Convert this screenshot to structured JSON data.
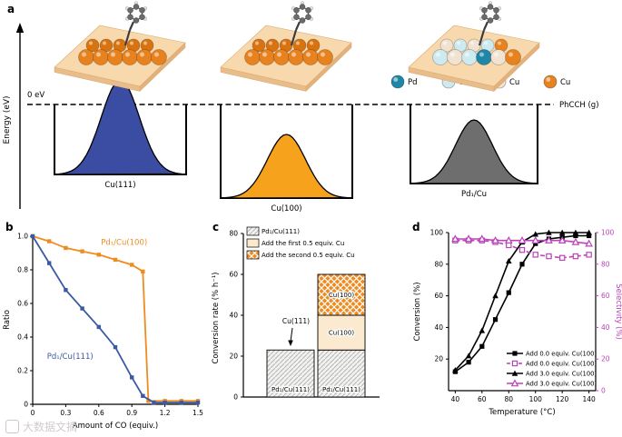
{
  "watermark": {
    "text": "大数据文摘"
  },
  "panel_a": {
    "label": "a",
    "energy_axis_label": "Energy (eV)",
    "zero_label": "0 eV",
    "gas_label": "PhCCH (g)",
    "legend": [
      {
        "label": "Pd",
        "color": "#1f86a8"
      },
      {
        "label": "Cu",
        "color": "#cdeaf0"
      },
      {
        "label": "Cu",
        "color": "#f4e6d4"
      },
      {
        "label": "Cu",
        "color": "#e8821e"
      }
    ],
    "wells": [
      {
        "label": "Cu(111)",
        "peak_color": "#3b4da3"
      },
      {
        "label": "Cu(100)",
        "peak_color": "#f6a21c"
      },
      {
        "label": "Pd₁/Cu",
        "peak_color": "#6e6e6e"
      }
    ],
    "slabs": [
      {
        "atoms_back": [
          "#d9730f",
          "#d9730f",
          "#d9730f",
          "#d9730f",
          "#d9730f"
        ],
        "atoms_front": [
          "#e8821e",
          "#e8821e",
          "#e8821e",
          "#e8821e",
          "#e8821e",
          "#e8821e"
        ]
      },
      {
        "atoms_back": [
          "#d9730f",
          "#d9730f",
          "#d9730f",
          "#d9730f",
          "#d9730f"
        ],
        "atoms_front": [
          "#e8821e",
          "#e8821e",
          "#e8821e",
          "#e8821e",
          "#e8821e",
          "#e8821e"
        ]
      },
      {
        "atoms_back": [
          "#f1e3d2",
          "#cdeaf0",
          "#f1e3d2",
          "#cdeaf0",
          "#e8821e"
        ],
        "atoms_front": [
          "#cdeaf0",
          "#f1e3d2",
          "#cdeaf0",
          "#1f86a8",
          "#f1e3d2",
          "#e8821e"
        ]
      }
    ]
  },
  "chart_data": [
    {
      "panel": "b",
      "type": "line",
      "xlabel": "Amount of CO (equiv.)",
      "ylabel": "Ratio",
      "xlim": [
        0,
        1.5
      ],
      "ylim": [
        0,
        1.0
      ],
      "xticks": [
        0,
        0.3,
        0.6,
        0.9,
        1.2,
        1.5
      ],
      "yticks": [
        0,
        0.2,
        0.4,
        0.6,
        0.8,
        1.0
      ],
      "series": [
        {
          "name": "Pd₁/Cu(100)",
          "color": "#ef8c1e",
          "marker": "square",
          "x": [
            0,
            0.15,
            0.3,
            0.45,
            0.6,
            0.75,
            0.9,
            1.0,
            1.05,
            1.2,
            1.35,
            1.5
          ],
          "y": [
            1.0,
            0.97,
            0.93,
            0.91,
            0.89,
            0.86,
            0.83,
            0.79,
            0.02,
            0.02,
            0.02,
            0.02
          ],
          "label_x": 0.62,
          "label_y": 0.95
        },
        {
          "name": "Pd₁/Cu(111)",
          "color": "#3b5aa5",
          "marker": "square",
          "x": [
            0,
            0.15,
            0.3,
            0.45,
            0.6,
            0.75,
            0.9,
            1.0,
            1.1,
            1.2,
            1.35,
            1.5
          ],
          "y": [
            1.0,
            0.84,
            0.68,
            0.57,
            0.46,
            0.34,
            0.16,
            0.05,
            0.01,
            0.01,
            0.01,
            0.01
          ],
          "label_x": 0.13,
          "label_y": 0.27
        }
      ]
    },
    {
      "panel": "c",
      "type": "bar",
      "ylabel": "Conversion rate (% h⁻¹)",
      "ylim": [
        0,
        80
      ],
      "yticks": [
        0,
        20,
        40,
        60,
        80
      ],
      "legend": [
        {
          "label": "Pd₁/Cu(111)",
          "style": "hatch-gray"
        },
        {
          "label": "Add the first 0.5 equiv. Cu",
          "style": "cream"
        },
        {
          "label": "Add the second 0.5 equiv. Cu",
          "style": "cross-orange"
        }
      ],
      "annotation": {
        "text": "Cu(111)",
        "bar": 0
      },
      "bars": [
        {
          "segments": [
            {
              "label": "Pd₁/Cu(111)",
              "value": 23,
              "style": "hatch-gray"
            }
          ]
        },
        {
          "segments": [
            {
              "label": "Pd₁/Cu(111)",
              "value": 23,
              "style": "hatch-gray"
            },
            {
              "label": "Cu(100)",
              "value": 17,
              "style": "cream"
            },
            {
              "label": "Cu(100)",
              "value": 20,
              "style": "cross-orange"
            }
          ]
        }
      ]
    },
    {
      "panel": "d",
      "type": "line-dual",
      "xlabel": "Temperature (°C)",
      "ylabel_left": "Conversion (%)",
      "ylabel_right": "Selectivity (%)",
      "xlim": [
        35,
        145
      ],
      "xticks": [
        40,
        60,
        80,
        100,
        120,
        140
      ],
      "ylim_left": [
        0,
        100
      ],
      "yticks_left": [
        20,
        40,
        60,
        80,
        100
      ],
      "ylim_right": [
        0,
        100
      ],
      "yticks_right": [
        0,
        20,
        40,
        60,
        80,
        100
      ],
      "right_axis_color": "#bb44bb",
      "series": [
        {
          "name": "Add 0.0 equiv. Cu(100)",
          "axis": "left",
          "color": "#000000",
          "marker": "square-filled",
          "dash": false,
          "x": [
            40,
            50,
            60,
            70,
            80,
            90,
            100,
            110,
            120,
            130,
            140
          ],
          "y": [
            12,
            18,
            28,
            45,
            62,
            80,
            93,
            96,
            97,
            98,
            98
          ]
        },
        {
          "name": "Add 0.0 equiv. Cu(100)",
          "axis": "right",
          "color": "#bb44bb",
          "marker": "square-open",
          "dash": true,
          "x": [
            40,
            50,
            60,
            70,
            80,
            90,
            100,
            110,
            120,
            130,
            140
          ],
          "y": [
            95,
            95,
            95,
            94,
            92,
            89,
            86,
            85,
            84,
            85,
            86
          ]
        },
        {
          "name": "Add 3.0 equiv. Cu(100)",
          "axis": "left",
          "color": "#000000",
          "marker": "triangle-filled",
          "dash": false,
          "x": [
            40,
            50,
            60,
            70,
            80,
            90,
            100,
            110,
            120,
            130,
            140
          ],
          "y": [
            13,
            22,
            38,
            60,
            82,
            94,
            99,
            100,
            100,
            100,
            100
          ]
        },
        {
          "name": "Add 3.0 equiv. Cu(100)",
          "axis": "right",
          "color": "#bb44bb",
          "marker": "triangle-open",
          "dash": false,
          "x": [
            40,
            50,
            60,
            70,
            80,
            90,
            100,
            110,
            120,
            130,
            140
          ],
          "y": [
            96,
            96,
            96,
            95,
            95,
            95,
            95,
            95,
            95,
            94,
            93
          ]
        }
      ]
    }
  ]
}
